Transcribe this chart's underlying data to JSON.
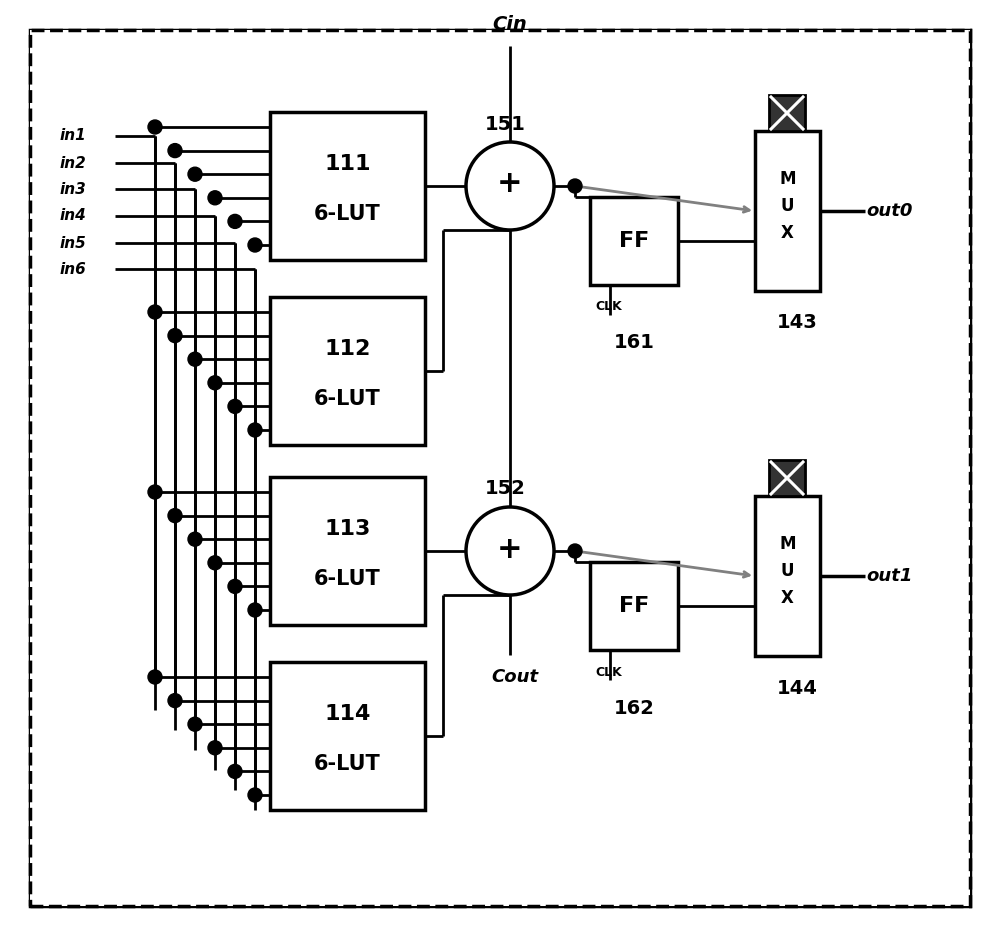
{
  "bg_color": "#ffffff",
  "fig_width": 10.0,
  "fig_height": 9.36,
  "dpi": 100,
  "lut_labels": [
    [
      "111",
      "6-LUT"
    ],
    [
      "112",
      "6-LUT"
    ],
    [
      "113",
      "6-LUT"
    ],
    [
      "114",
      "6-LUT"
    ]
  ],
  "input_labels": [
    "in1",
    "in2",
    "in3",
    "in4",
    "in5",
    "in6"
  ],
  "cin_label": "Cin",
  "cout_label": "Cout",
  "add_labels": [
    "151",
    "152"
  ],
  "ff_labels": [
    "FF",
    "FF"
  ],
  "ff_num_labels": [
    "161",
    "162"
  ],
  "clk_label": "CLK",
  "mux_label": "MUX",
  "mux_num_labels": [
    "143",
    "144"
  ],
  "out_labels": [
    "out0",
    "out1"
  ]
}
